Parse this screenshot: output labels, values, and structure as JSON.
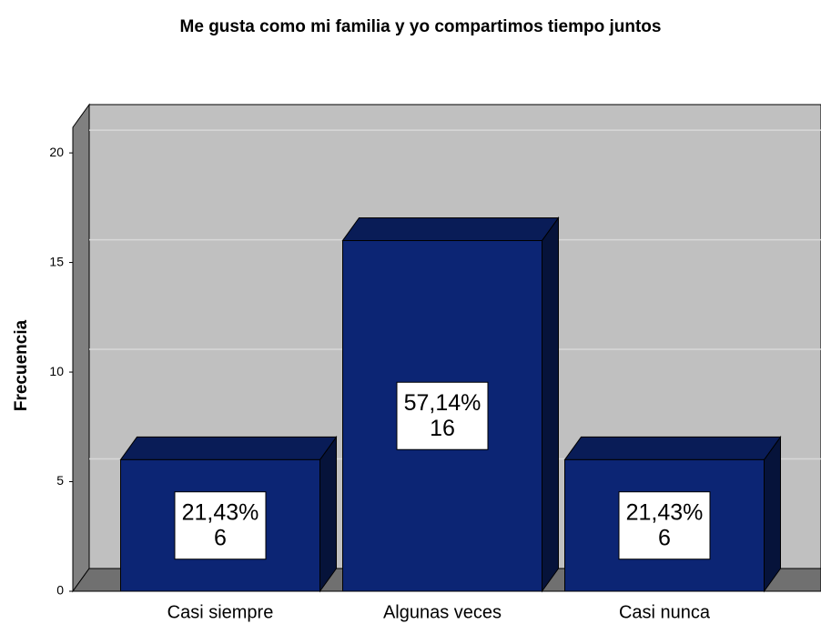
{
  "chart_data": {
    "type": "bar3d",
    "title": "Me gusta como mi familia y yo compartimos tiempo juntos",
    "ylabel": "Frecuencia",
    "categories": [
      "Casi siempre",
      "Algunas veces",
      "Casi nunca"
    ],
    "values": [
      6,
      16,
      6
    ],
    "percent_labels": [
      "21,43%",
      "57,14%",
      "21,43%"
    ],
    "color": "#0c2574",
    "ylim": [
      0,
      21
    ],
    "yticks": [
      0,
      5,
      10,
      15,
      20
    ],
    "grid": true
  }
}
